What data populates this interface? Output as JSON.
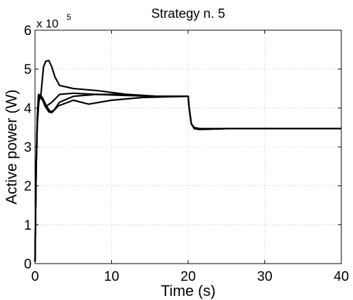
{
  "chart_data": {
    "type": "line",
    "title": "Strategy n. 5",
    "xlabel": "Time (s)",
    "ylabel": "Active power (W)",
    "y_multiplier_prefix": "x 10",
    "y_multiplier_exponent": "5",
    "xlim": [
      0,
      40
    ],
    "ylim": [
      0,
      6
    ],
    "xticks": [
      0,
      10,
      20,
      30,
      40
    ],
    "yticks": [
      0,
      1,
      2,
      3,
      4,
      5,
      6
    ],
    "grid": true,
    "legend": false,
    "line_color": "#000000",
    "series": [
      {
        "values": [
          [
            0,
            0.05
          ],
          [
            0.15,
            2.4
          ],
          [
            0.3,
            3.6
          ],
          [
            0.5,
            4.15
          ],
          [
            0.8,
            4.4
          ],
          [
            1.1,
            5.05
          ],
          [
            1.4,
            5.2
          ],
          [
            1.8,
            5.22
          ],
          [
            2.2,
            5.05
          ],
          [
            2.6,
            4.8
          ],
          [
            3.2,
            4.58
          ],
          [
            5,
            4.5
          ],
          [
            8,
            4.45
          ],
          [
            12,
            4.35
          ],
          [
            16,
            4.3
          ],
          [
            20,
            4.3
          ],
          [
            20.1,
            4.05
          ],
          [
            20.4,
            3.6
          ],
          [
            20.8,
            3.5
          ],
          [
            21.5,
            3.47
          ],
          [
            25,
            3.47
          ],
          [
            40,
            3.47
          ]
        ]
      },
      {
        "values": [
          [
            0,
            0.05
          ],
          [
            0.15,
            2.5
          ],
          [
            0.3,
            3.7
          ],
          [
            0.5,
            4.25
          ],
          [
            0.7,
            4.35
          ],
          [
            1.0,
            4.25
          ],
          [
            1.5,
            4.05
          ],
          [
            2.0,
            3.9
          ],
          [
            2.5,
            3.95
          ],
          [
            3.2,
            4.15
          ],
          [
            5,
            4.3
          ],
          [
            8,
            4.35
          ],
          [
            12,
            4.35
          ],
          [
            16,
            4.3
          ],
          [
            20,
            4.3
          ],
          [
            20.1,
            4.05
          ],
          [
            20.4,
            3.6
          ],
          [
            20.8,
            3.47
          ],
          [
            21.5,
            3.45
          ],
          [
            25,
            3.47
          ],
          [
            40,
            3.47
          ]
        ]
      },
      {
        "values": [
          [
            0,
            0.05
          ],
          [
            0.15,
            2.45
          ],
          [
            0.3,
            3.65
          ],
          [
            0.5,
            4.25
          ],
          [
            0.7,
            4.32
          ],
          [
            1.0,
            4.2
          ],
          [
            1.3,
            4.05
          ],
          [
            1.8,
            3.9
          ],
          [
            2.2,
            3.88
          ],
          [
            3,
            4.05
          ],
          [
            5,
            4.2
          ],
          [
            7,
            4.1
          ],
          [
            10,
            4.2
          ],
          [
            14,
            4.27
          ],
          [
            20,
            4.3
          ],
          [
            20.1,
            4.05
          ],
          [
            20.4,
            3.6
          ],
          [
            20.8,
            3.47
          ],
          [
            21.5,
            3.45
          ],
          [
            25,
            3.47
          ],
          [
            40,
            3.47
          ]
        ]
      },
      {
        "values": [
          [
            0,
            0.05
          ],
          [
            0.15,
            2.55
          ],
          [
            0.3,
            3.8
          ],
          [
            0.45,
            4.35
          ],
          [
            0.6,
            4.3
          ],
          [
            1.0,
            4.2
          ],
          [
            1.5,
            4.05
          ],
          [
            2.2,
            4.15
          ],
          [
            3.2,
            4.35
          ],
          [
            5,
            4.38
          ],
          [
            8,
            4.35
          ],
          [
            12,
            4.32
          ],
          [
            16,
            4.3
          ],
          [
            20,
            4.3
          ],
          [
            20.1,
            4.05
          ],
          [
            20.4,
            3.6
          ],
          [
            20.8,
            3.48
          ],
          [
            21.5,
            3.46
          ],
          [
            25,
            3.47
          ],
          [
            40,
            3.47
          ]
        ]
      }
    ]
  }
}
